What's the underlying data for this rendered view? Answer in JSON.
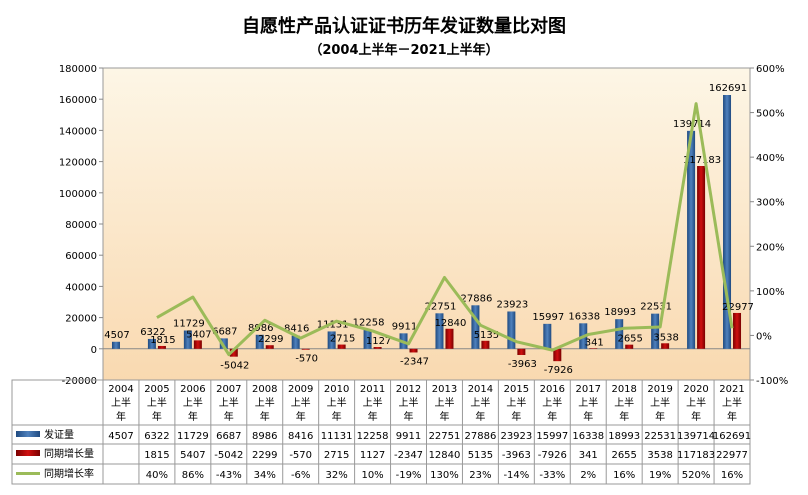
{
  "chart_data": {
    "type": "bar",
    "title": "自愿性产品认证证书历年发证数量比对图",
    "subtitle": "（2004上半年－2021上半年）",
    "categories": [
      "2004上半年",
      "2005上半年",
      "2006上半年",
      "2007上半年",
      "2008上半年",
      "2009上半年",
      "2010上半年",
      "2011上半年",
      "2012上半年",
      "2013上半年",
      "2014上半年",
      "2015上半年",
      "2016上半年",
      "2017上半年",
      "2018上半年",
      "2019上半年",
      "2020上半年",
      "2021上半年"
    ],
    "category_lines": [
      [
        "2004",
        "上半",
        "年"
      ],
      [
        "2005",
        "上半",
        "年"
      ],
      [
        "2006",
        "上半",
        "年"
      ],
      [
        "2007",
        "上半",
        "年"
      ],
      [
        "2008",
        "上半",
        "年"
      ],
      [
        "2009",
        "上半",
        "年"
      ],
      [
        "2010",
        "上半",
        "年"
      ],
      [
        "2011",
        "上半",
        "年"
      ],
      [
        "2012",
        "上半",
        "年"
      ],
      [
        "2013",
        "上半",
        "年"
      ],
      [
        "2014",
        "上半",
        "年"
      ],
      [
        "2015",
        "上半",
        "年"
      ],
      [
        "2016",
        "上半",
        "年"
      ],
      [
        "2017",
        "上半",
        "年"
      ],
      [
        "2018",
        "上半",
        "年"
      ],
      [
        "2019",
        "上半",
        "年"
      ],
      [
        "2020",
        "上半",
        "年"
      ],
      [
        "2021",
        "上半",
        "年"
      ]
    ],
    "series": [
      {
        "name": "发证量",
        "type": "bar",
        "axis": "left",
        "color": "#2e5f9e",
        "values": [
          4507,
          6322,
          11729,
          6687,
          8986,
          8416,
          11131,
          12258,
          9911,
          22751,
          27886,
          23923,
          15997,
          16338,
          18993,
          22531,
          139714,
          162691
        ]
      },
      {
        "name": "同期增长量",
        "type": "bar",
        "axis": "left",
        "color": "#b00000",
        "values": [
          null,
          1815,
          5407,
          -5042,
          2299,
          -570,
          2715,
          1127,
          -2347,
          12840,
          5135,
          -3963,
          -7926,
          341,
          2655,
          3538,
          117183,
          22977
        ]
      },
      {
        "name": "同期增长率",
        "type": "line",
        "axis": "right",
        "color": "#9bbb59",
        "values": [
          null,
          40,
          86,
          -43,
          34,
          -6,
          32,
          10,
          -19,
          130,
          23,
          -14,
          -33,
          2,
          16,
          19,
          520,
          16
        ],
        "labels": [
          "",
          "40%",
          "86%",
          "-43%",
          "34%",
          "-6%",
          "32%",
          "10%",
          "-19%",
          "130%",
          "23%",
          "-14%",
          "-33%",
          "2%",
          "16%",
          "19%",
          "520%",
          "16%"
        ]
      }
    ],
    "y_left": {
      "range": [
        -20000,
        180000
      ],
      "ticks": [
        -20000,
        0,
        20000,
        40000,
        60000,
        80000,
        100000,
        120000,
        140000,
        160000,
        180000
      ]
    },
    "y_right": {
      "range": [
        -100,
        600
      ],
      "ticks": [
        "-100%",
        "0%",
        "100%",
        "200%",
        "300%",
        "400%",
        "500%",
        "600%"
      ]
    },
    "data_table": true,
    "grid": false
  }
}
